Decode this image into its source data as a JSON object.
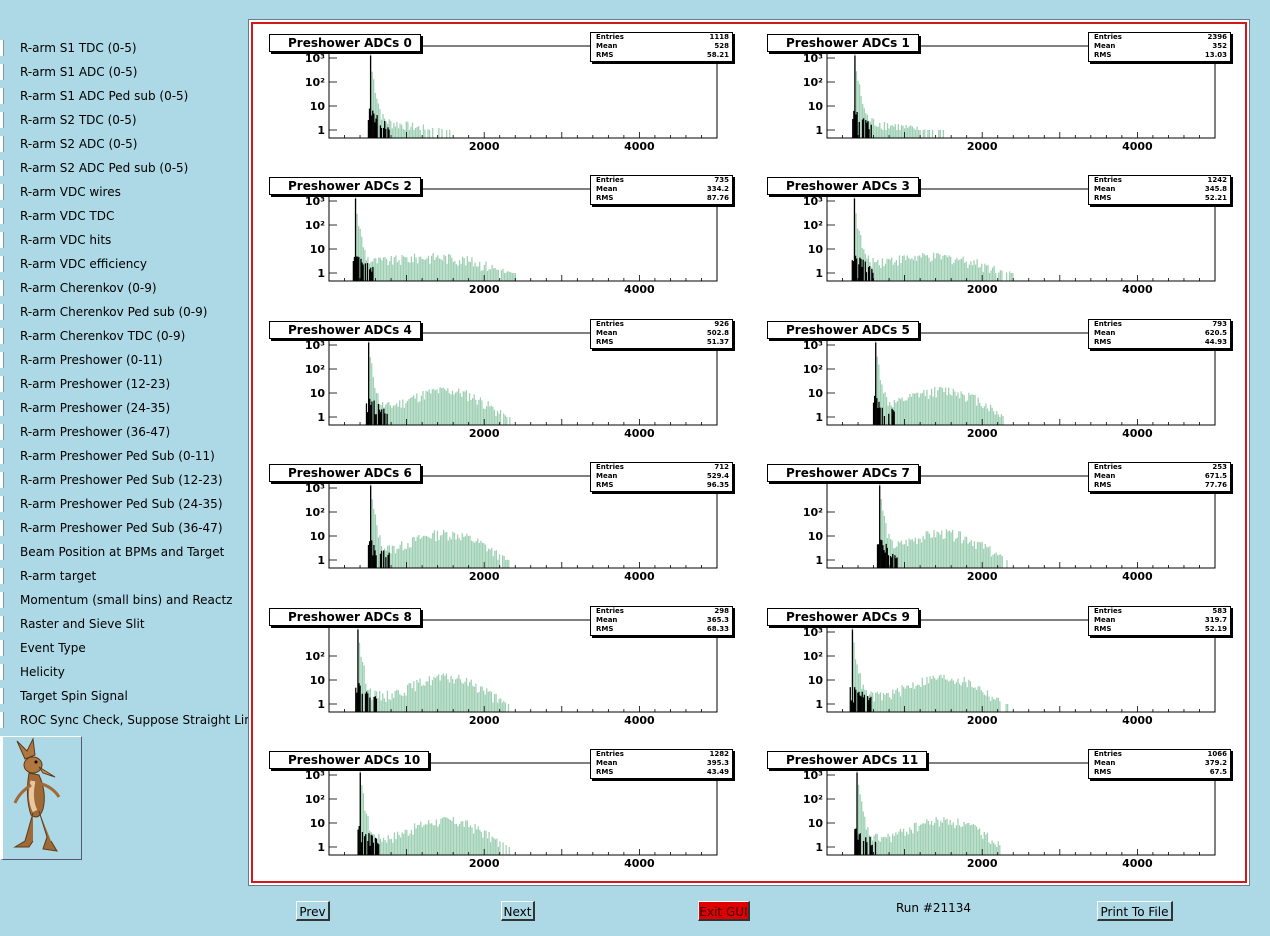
{
  "sidebar": {
    "items": [
      "R-arm S1 TDC (0-5)",
      "R-arm S1 ADC (0-5)",
      "R-arm S1 ADC Ped sub (0-5)",
      "R-arm S2 TDC (0-5)",
      "R-arm S2 ADC (0-5)",
      "R-arm S2 ADC Ped sub (0-5)",
      "R-arm VDC wires",
      "R-arm VDC TDC",
      "R-arm VDC hits",
      "R-arm VDC efficiency",
      "R-arm Cherenkov (0-9)",
      "R-arm Cherenkov Ped sub (0-9)",
      "R-arm Cherenkov TDC (0-9)",
      "R-arm Preshower (0-11)",
      "R-arm Preshower (12-23)",
      "R-arm Preshower (24-35)",
      "R-arm Preshower (36-47)",
      "R-arm Preshower Ped Sub (0-11)",
      "R-arm Preshower Ped Sub (12-23)",
      "R-arm Preshower Ped Sub (24-35)",
      "R-arm Preshower Ped Sub (36-47)",
      "Beam Position at BPMs and Target",
      "R-arm target",
      "Momentum (small bins) and Reactz",
      "Raster and Sieve Slit",
      "Event Type",
      "Helicity",
      "Target Spin Signal",
      "ROC Sync Check, Suppose Straight Lines"
    ],
    "selected_index": 28
  },
  "stats_labels": {
    "entries": "Entries",
    "mean": "Mean",
    "rms": "RMS"
  },
  "buttons": {
    "prev": "Prev",
    "next": "Next",
    "exit": "Exit GUI",
    "print": "Print To File"
  },
  "run_label": "Run #21134",
  "colors": {
    "background": "#add8e6",
    "frame": "#d21818",
    "hist_fill": "#8cc7a6",
    "hist_line": "#000000",
    "exit_button": "#e00000"
  },
  "chart_data": [
    {
      "type": "bar",
      "title": "Preshower ADCs 0",
      "entries": "1118",
      "mean": "528",
      "rms": "58.21",
      "x_ticks": [
        "2000",
        "4000"
      ],
      "y_ticks": [
        "1",
        "10",
        "10²",
        "10³"
      ],
      "xlim": [
        0,
        5000
      ],
      "log_y": true,
      "peak_x": 528,
      "shape": "narrow"
    },
    {
      "type": "bar",
      "title": "Preshower ADCs 1",
      "entries": "2396",
      "mean": "352",
      "rms": "13.03",
      "x_ticks": [
        "2000",
        "4000"
      ],
      "y_ticks": [
        "1",
        "10",
        "10²",
        "10³"
      ],
      "xlim": [
        0,
        5000
      ],
      "log_y": true,
      "peak_x": 352,
      "shape": "narrow"
    },
    {
      "type": "bar",
      "title": "Preshower ADCs 2",
      "entries": "735",
      "mean": "334.2",
      "rms": "87.76",
      "x_ticks": [
        "2000",
        "4000"
      ],
      "y_ticks": [
        "1",
        "10",
        "10²",
        "10³"
      ],
      "xlim": [
        0,
        5000
      ],
      "log_y": true,
      "peak_x": 334,
      "shape": "flat"
    },
    {
      "type": "bar",
      "title": "Preshower ADCs 3",
      "entries": "1242",
      "mean": "345.8",
      "rms": "52.21",
      "x_ticks": [
        "2000",
        "4000"
      ],
      "y_ticks": [
        "1",
        "10",
        "10²",
        "10³"
      ],
      "xlim": [
        0,
        5000
      ],
      "log_y": true,
      "peak_x": 346,
      "shape": "flat"
    },
    {
      "type": "bar",
      "title": "Preshower ADCs 4",
      "entries": "926",
      "mean": "502.8",
      "rms": "51.37",
      "x_ticks": [
        "2000",
        "4000"
      ],
      "y_ticks": [
        "1",
        "10",
        "10²",
        "10³"
      ],
      "xlim": [
        0,
        5000
      ],
      "log_y": true,
      "peak_x": 503,
      "shape": "bump"
    },
    {
      "type": "bar",
      "title": "Preshower ADCs 5",
      "entries": "793",
      "mean": "620.5",
      "rms": "44.93",
      "x_ticks": [
        "2000",
        "4000"
      ],
      "y_ticks": [
        "1",
        "10",
        "10²",
        "10³"
      ],
      "xlim": [
        0,
        5000
      ],
      "log_y": true,
      "peak_x": 620,
      "shape": "bump"
    },
    {
      "type": "bar",
      "title": "Preshower ADCs 6",
      "entries": "712",
      "mean": "529.4",
      "rms": "96.35",
      "x_ticks": [
        "2000",
        "4000"
      ],
      "y_ticks": [
        "1",
        "10",
        "10²",
        "10³"
      ],
      "xlim": [
        0,
        5000
      ],
      "log_y": true,
      "peak_x": 529,
      "shape": "bump"
    },
    {
      "type": "bar",
      "title": "Preshower ADCs 7",
      "entries": "253",
      "mean": "671.5",
      "rms": "77.76",
      "x_ticks": [
        "2000",
        "4000"
      ],
      "y_ticks": [
        "1",
        "10",
        "10²"
      ],
      "xlim": [
        0,
        5000
      ],
      "log_y": true,
      "peak_x": 671,
      "shape": "bump"
    },
    {
      "type": "bar",
      "title": "Preshower ADCs 8",
      "entries": "298",
      "mean": "365.3",
      "rms": "68.33",
      "x_ticks": [
        "2000",
        "4000"
      ],
      "y_ticks": [
        "1",
        "10",
        "10²"
      ],
      "xlim": [
        0,
        5000
      ],
      "log_y": true,
      "peak_x": 365,
      "shape": "bump"
    },
    {
      "type": "bar",
      "title": "Preshower ADCs 9",
      "entries": "583",
      "mean": "319.7",
      "rms": "52.19",
      "x_ticks": [
        "2000",
        "4000"
      ],
      "y_ticks": [
        "1",
        "10",
        "10²",
        "10³"
      ],
      "xlim": [
        0,
        5000
      ],
      "log_y": true,
      "peak_x": 320,
      "shape": "bump"
    },
    {
      "type": "bar",
      "title": "Preshower ADCs 10",
      "entries": "1282",
      "mean": "395.3",
      "rms": "43.49",
      "x_ticks": [
        "2000",
        "4000"
      ],
      "y_ticks": [
        "1",
        "10",
        "10²",
        "10³"
      ],
      "xlim": [
        0,
        5000
      ],
      "log_y": true,
      "peak_x": 395,
      "shape": "bump"
    },
    {
      "type": "bar",
      "title": "Preshower ADCs 11",
      "entries": "1066",
      "mean": "379.2",
      "rms": "67.5",
      "x_ticks": [
        "2000",
        "4000"
      ],
      "y_ticks": [
        "1",
        "10",
        "10²",
        "10³"
      ],
      "xlim": [
        0,
        5000
      ],
      "log_y": true,
      "peak_x": 379,
      "shape": "bump"
    }
  ]
}
